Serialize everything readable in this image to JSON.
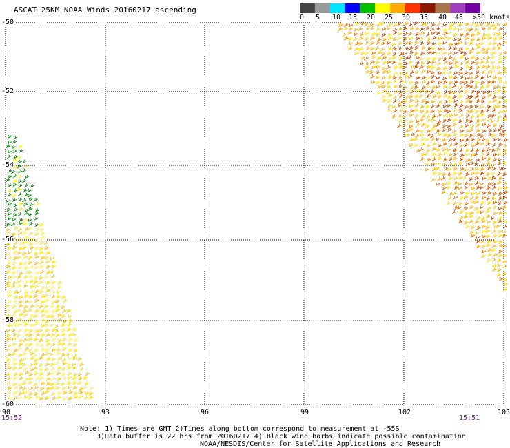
{
  "title": "ASCAT 25KM NOAA Winds 20160217 ascending",
  "colorbar": {
    "colors": [
      "#444444",
      "#9a9a9a",
      "#00e5ff",
      "#0000ff",
      "#00c000",
      "#ffff00",
      "#ffaa00",
      "#ff3300",
      "#8b1a00",
      "#a8744a",
      "#a040c0",
      "#7000a0"
    ],
    "labels": [
      "0",
      "5",
      "10",
      "15",
      "20",
      "25",
      "30",
      "35",
      "40",
      "45",
      ">50 knots"
    ]
  },
  "axes": {
    "lat_labels": [
      "-50",
      "-52",
      "-54",
      "-56",
      "-58",
      "-60"
    ],
    "lon_labels": [
      "90",
      "93",
      "96",
      "99",
      "102",
      "105"
    ]
  },
  "times": {
    "left": "15:52",
    "right": "15:51"
  },
  "notes": {
    "line1": "Note: 1) Times are GMT 2)Times along bottom correspond to measurement at -55S",
    "line2": "3)Data buffer is 22 hrs from 20160217 4) Black wind barbs indicate possible contamination",
    "line3": "NOAA/NESDIS/Center for Satellite Applications and Research"
  }
}
